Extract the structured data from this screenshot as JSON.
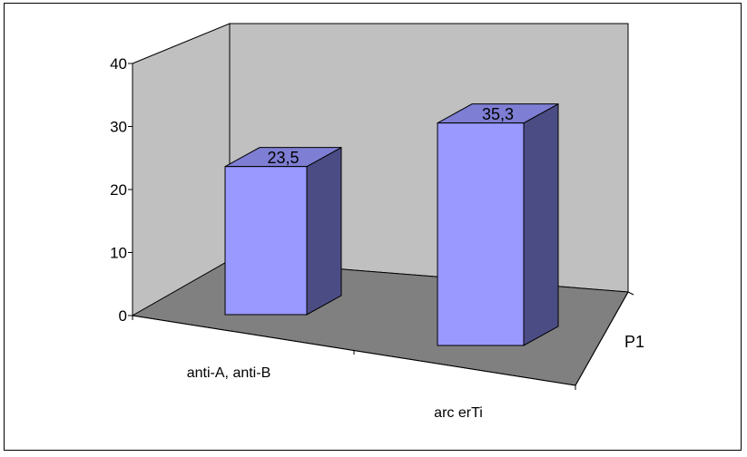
{
  "chart_data": {
    "type": "bar",
    "style": "3d-column",
    "categories": [
      "anti-A, anti-B",
      "arc erTi"
    ],
    "series": [
      {
        "name": "P1",
        "values": [
          23.5,
          35.3
        ]
      }
    ],
    "value_labels": [
      "23,5",
      "35,3"
    ],
    "y_ticks": [
      "0",
      "10",
      "20",
      "30",
      "40"
    ],
    "depth_label": "P1",
    "ylim": [
      0,
      40
    ],
    "grid": false,
    "legend": "none",
    "colors": {
      "bar_front": "#9999ff",
      "bar_top": "#7e7ed4",
      "bar_side": "#4c4c85",
      "back_wall": "#c0c0c0",
      "floor": "#808080"
    }
  }
}
